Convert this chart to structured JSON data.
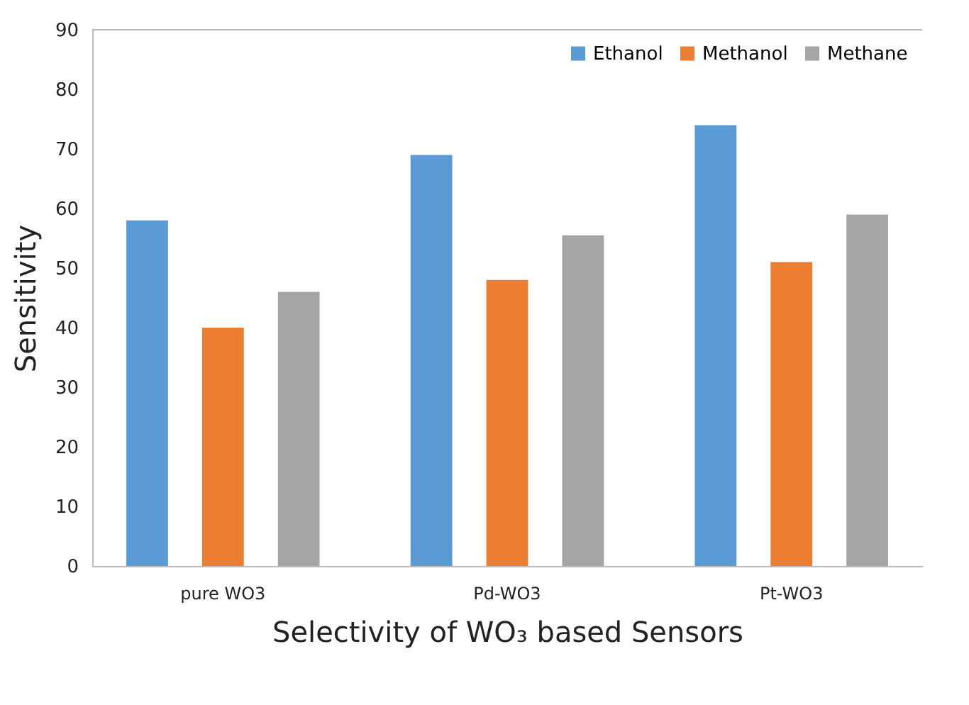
{
  "chart_data": {
    "type": "bar",
    "xlabel": "Selectivity of WO₃ based Sensors",
    "ylabel": "Sensitivity",
    "categories": [
      "pure WO3",
      "Pd-WO3",
      "Pt-WO3"
    ],
    "series": [
      {
        "name": "Ethanol",
        "color": "#5b9bd5",
        "values": [
          58,
          69,
          74
        ]
      },
      {
        "name": "Methanol",
        "color": "#ed7d31",
        "values": [
          40,
          48,
          51
        ]
      },
      {
        "name": "Methane",
        "color": "#a5a5a5",
        "values": [
          46,
          55.5,
          59
        ]
      }
    ],
    "ylim": [
      0,
      90
    ],
    "yticks": [
      0,
      10,
      20,
      30,
      40,
      50,
      60,
      70,
      80,
      90
    ],
    "legend": "top right"
  }
}
